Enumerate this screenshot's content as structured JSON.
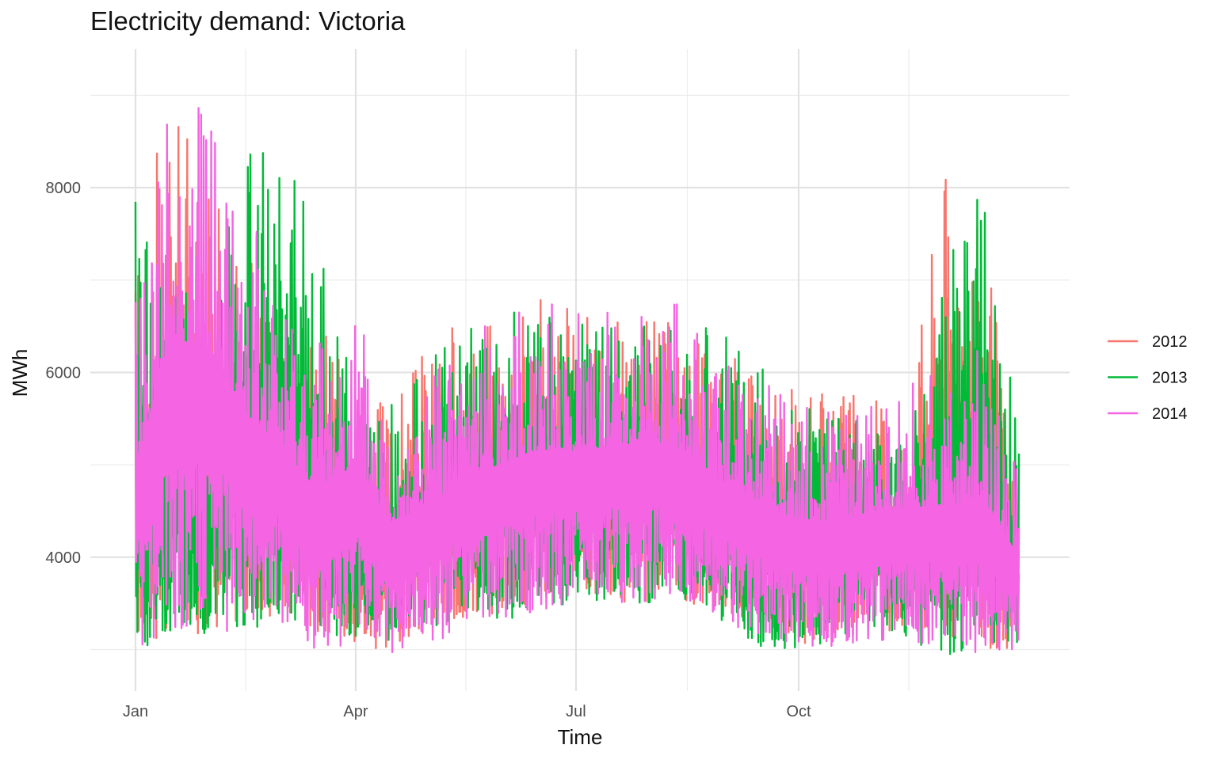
{
  "chart_data": {
    "type": "line",
    "title": "Electricity demand: Victoria",
    "xlabel": "Time",
    "ylabel": "MWh",
    "x_unit": "day of year",
    "xlim": [
      0,
      365
    ],
    "ylim": [
      2550,
      9500
    ],
    "x_ticks": [
      {
        "label": "Jan",
        "value": 0
      },
      {
        "label": "Apr",
        "value": 91
      },
      {
        "label": "Jul",
        "value": 182
      },
      {
        "label": "Oct",
        "value": 274
      }
    ],
    "x_minor_ticks": [
      45.5,
      136.5,
      228,
      319.5
    ],
    "y_ticks": [
      {
        "label": "4000",
        "value": 4000
      },
      {
        "label": "6000",
        "value": 6000
      },
      {
        "label": "8000",
        "value": 8000
      }
    ],
    "y_minor_ticks": [
      3000,
      5000,
      7000,
      9000
    ],
    "grid": true,
    "legend_position": "right",
    "x": [
      0,
      15,
      30,
      45,
      60,
      75,
      91,
      105,
      120,
      136,
      150,
      165,
      182,
      197,
      212,
      228,
      243,
      258,
      274,
      289,
      304,
      319,
      334,
      350,
      365
    ],
    "series": [
      {
        "name": "2012",
        "color": "#F8766D",
        "high": [
          7350,
          9100,
          8100,
          7300,
          7000,
          6800,
          5800,
          5700,
          6300,
          6600,
          6800,
          6900,
          6700,
          6600,
          6700,
          6500,
          6300,
          6100,
          5800,
          5800,
          5800,
          5700,
          8450,
          7750,
          4550
        ],
        "low": [
          3000,
          3100,
          3200,
          3300,
          3300,
          3200,
          3000,
          3000,
          3200,
          3300,
          3400,
          3500,
          3600,
          3500,
          3500,
          3500,
          3400,
          3300,
          3000,
          3100,
          3200,
          3200,
          3100,
          3000,
          3000
        ]
      },
      {
        "name": "2013",
        "color": "#00BA38",
        "high": [
          8300,
          7200,
          6400,
          8450,
          8900,
          7400,
          5800,
          5700,
          6100,
          6500,
          6600,
          6800,
          6850,
          6700,
          6600,
          6600,
          6400,
          6100,
          5700,
          5600,
          5600,
          5500,
          7350,
          8150,
          5300
        ],
        "low": [
          3000,
          3100,
          3100,
          3200,
          3300,
          3200,
          3100,
          3100,
          3200,
          3300,
          3300,
          3400,
          3500,
          3500,
          3500,
          3500,
          3300,
          3000,
          3000,
          3100,
          3200,
          3100,
          2900,
          2900,
          2900
        ]
      },
      {
        "name": "2014",
        "color": "#F564E3",
        "high": [
          7000,
          9350,
          9200,
          7800,
          7000,
          6500,
          6800,
          5700,
          6000,
          6400,
          6600,
          6800,
          6700,
          6800,
          6900,
          6700,
          6200,
          6000,
          5700,
          5700,
          5800,
          5900,
          6000,
          6300,
          4900
        ],
        "low": [
          2950,
          3100,
          3200,
          3200,
          3300,
          2850,
          3100,
          2950,
          3000,
          3200,
          3300,
          3400,
          3500,
          3500,
          3500,
          3500,
          3300,
          3100,
          3000,
          3000,
          3100,
          3100,
          3000,
          2850,
          3000
        ]
      }
    ]
  }
}
